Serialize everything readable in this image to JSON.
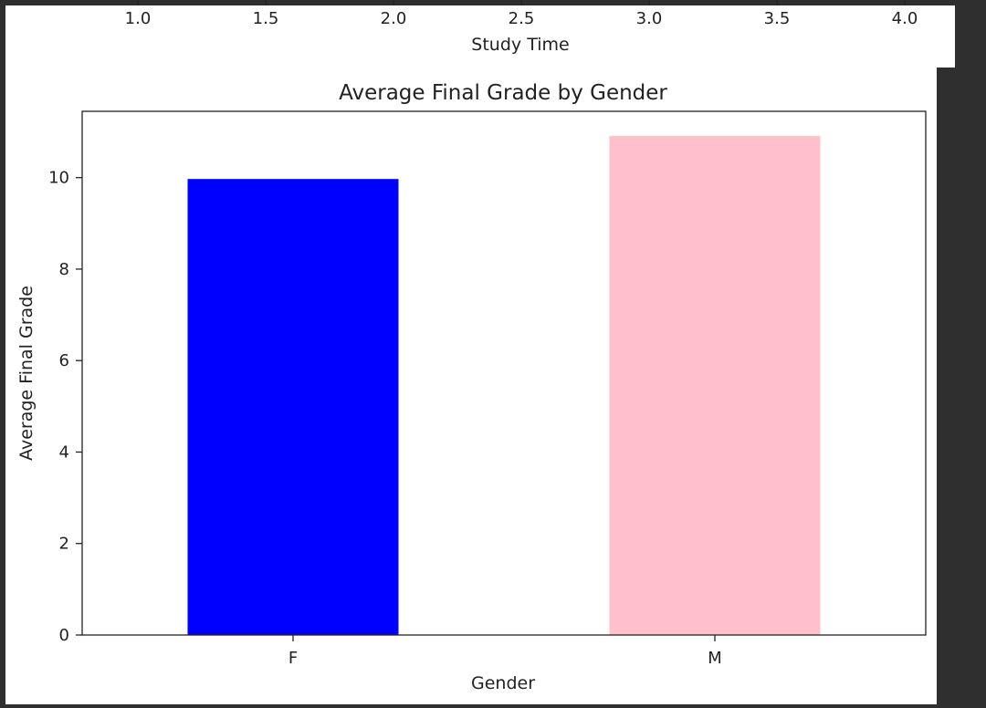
{
  "upper_chart": {
    "xlabel": "Study Time",
    "xticks": [
      "1.0",
      "1.5",
      "2.0",
      "2.5",
      "3.0",
      "3.5",
      "4.0"
    ]
  },
  "chart_data": {
    "type": "bar",
    "title": "Average Final Grade by Gender",
    "xlabel": "Gender",
    "ylabel": "Average Final Grade",
    "categories": [
      "F",
      "M"
    ],
    "values": [
      9.97,
      10.91
    ],
    "colors": [
      "#0000ff",
      "#ffc0cb"
    ],
    "ylim": [
      0,
      11.45
    ],
    "yticks": [
      0,
      2,
      4,
      6,
      8,
      10
    ],
    "grid": false
  }
}
